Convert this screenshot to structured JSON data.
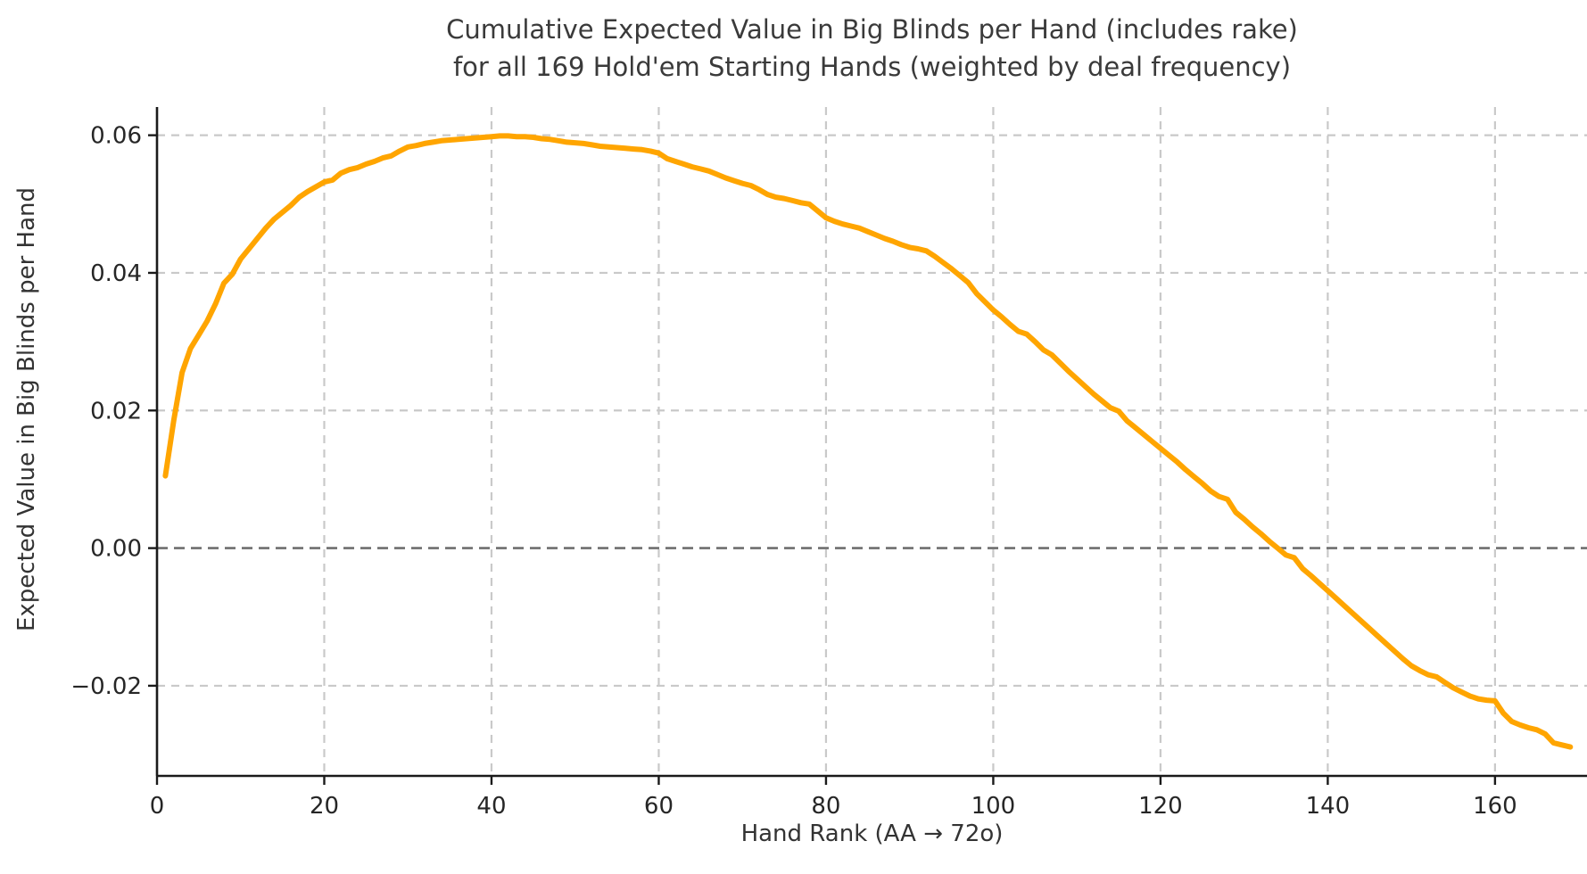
{
  "chart_data": {
    "type": "line",
    "title_line1": "Cumulative Expected Value in Big Blinds per Hand (includes rake)",
    "title_line2": "for all 169 Hold'em Starting Hands (weighted by deal frequency)",
    "xlabel": "Hand Rank (AA → 72o)",
    "ylabel": "Expected Value in Big Blinds per Hand",
    "xlim": [
      0,
      171
    ],
    "ylim": [
      -0.0331,
      0.0641
    ],
    "grid": true,
    "grid_style": "dashed",
    "legend": "none",
    "x_ticks": [
      {
        "value": 0,
        "label": "0"
      },
      {
        "value": 20,
        "label": "20"
      },
      {
        "value": 40,
        "label": "40"
      },
      {
        "value": 60,
        "label": "60"
      },
      {
        "value": 80,
        "label": "80"
      },
      {
        "value": 100,
        "label": "100"
      },
      {
        "value": 120,
        "label": "120"
      },
      {
        "value": 140,
        "label": "140"
      },
      {
        "value": 160,
        "label": "160"
      }
    ],
    "y_ticks": [
      {
        "value": 0.06,
        "label": "0.06"
      },
      {
        "value": 0.04,
        "label": "0.04"
      },
      {
        "value": 0.02,
        "label": "0.02"
      },
      {
        "value": 0.0,
        "label": "0.00"
      },
      {
        "value": -0.02,
        "label": "−0.02"
      }
    ],
    "zero_line": {
      "value": 0.0,
      "style": "dashed",
      "color": "#6f6f6f"
    },
    "colors": {
      "line": "#FFA500",
      "grid": "#c9c9c9",
      "axis": "#1a1a1a",
      "text": "#262626",
      "background": "#ffffff"
    },
    "series": [
      {
        "name": "Cumulative EV in big blinds per hand",
        "x": [
          1,
          2,
          3,
          4,
          5,
          6,
          7,
          8,
          9,
          10,
          11,
          12,
          13,
          14,
          15,
          16,
          17,
          18,
          19,
          20,
          21,
          22,
          23,
          24,
          25,
          26,
          27,
          28,
          29,
          30,
          31,
          32,
          33,
          34,
          35,
          36,
          37,
          38,
          39,
          40,
          41,
          42,
          43,
          44,
          45,
          46,
          47,
          48,
          49,
          50,
          51,
          52,
          53,
          54,
          55,
          56,
          57,
          58,
          59,
          60,
          61,
          62,
          63,
          64,
          65,
          66,
          67,
          68,
          69,
          70,
          71,
          72,
          73,
          74,
          75,
          76,
          77,
          78,
          79,
          80,
          81,
          82,
          83,
          84,
          85,
          86,
          87,
          88,
          89,
          90,
          91,
          92,
          93,
          94,
          95,
          96,
          97,
          98,
          99,
          100,
          101,
          102,
          103,
          104,
          105,
          106,
          107,
          108,
          109,
          110,
          111,
          112,
          113,
          114,
          115,
          116,
          117,
          118,
          119,
          120,
          121,
          122,
          123,
          124,
          125,
          126,
          127,
          128,
          129,
          130,
          131,
          132,
          133,
          134,
          135,
          136,
          137,
          138,
          139,
          140,
          141,
          142,
          143,
          144,
          145,
          146,
          147,
          148,
          149,
          150,
          151,
          152,
          153,
          154,
          155,
          156,
          157,
          158,
          159,
          160,
          161,
          162,
          163,
          164,
          165,
          166,
          167,
          168,
          169
        ],
        "values": [
          0.0105,
          0.0185,
          0.0255,
          0.029,
          0.031,
          0.033,
          0.0355,
          0.0385,
          0.0398,
          0.042,
          0.0435,
          0.045,
          0.0465,
          0.0478,
          0.0488,
          0.0498,
          0.051,
          0.0518,
          0.0525,
          0.0532,
          0.0535,
          0.0545,
          0.055,
          0.0553,
          0.0558,
          0.0562,
          0.0567,
          0.057,
          0.0577,
          0.0583,
          0.0585,
          0.0588,
          0.059,
          0.0592,
          0.0593,
          0.0594,
          0.0595,
          0.0596,
          0.0597,
          0.0598,
          0.0599,
          0.0599,
          0.0598,
          0.0598,
          0.0597,
          0.0595,
          0.0594,
          0.0592,
          0.059,
          0.0589,
          0.0588,
          0.0586,
          0.0584,
          0.0583,
          0.0582,
          0.0581,
          0.058,
          0.0579,
          0.0577,
          0.0574,
          0.0566,
          0.0562,
          0.0558,
          0.0554,
          0.0551,
          0.0548,
          0.0543,
          0.0538,
          0.0534,
          0.053,
          0.0527,
          0.0521,
          0.0514,
          0.051,
          0.0508,
          0.0505,
          0.0502,
          0.05,
          0.049,
          0.048,
          0.0475,
          0.0471,
          0.0468,
          0.0465,
          0.046,
          0.0455,
          0.045,
          0.0446,
          0.0441,
          0.0437,
          0.0435,
          0.0432,
          0.0424,
          0.0415,
          0.0406,
          0.0396,
          0.0386,
          0.037,
          0.0358,
          0.0346,
          0.0336,
          0.0325,
          0.0315,
          0.0311,
          0.03,
          0.0288,
          0.0281,
          0.0269,
          0.0257,
          0.0246,
          0.0235,
          0.0224,
          0.0214,
          0.0204,
          0.0199,
          0.0185,
          0.0175,
          0.0165,
          0.0155,
          0.0145,
          0.0135,
          0.0125,
          0.0114,
          0.0104,
          0.0094,
          0.0083,
          0.0075,
          0.0071,
          0.0052,
          0.0042,
          0.0031,
          0.0021,
          0.001,
          0.0,
          -0.001,
          -0.0014,
          -0.003,
          -0.004,
          -0.0051,
          -0.0062,
          -0.0073,
          -0.0084,
          -0.0095,
          -0.0106,
          -0.0117,
          -0.0128,
          -0.0139,
          -0.015,
          -0.0161,
          -0.0171,
          -0.0178,
          -0.0184,
          -0.0187,
          -0.0195,
          -0.0203,
          -0.0209,
          -0.0215,
          -0.0219,
          -0.0221,
          -0.0222,
          -0.024,
          -0.0252,
          -0.0257,
          -0.0261,
          -0.0264,
          -0.027,
          -0.0283,
          -0.0286,
          -0.0289
        ]
      }
    ]
  }
}
